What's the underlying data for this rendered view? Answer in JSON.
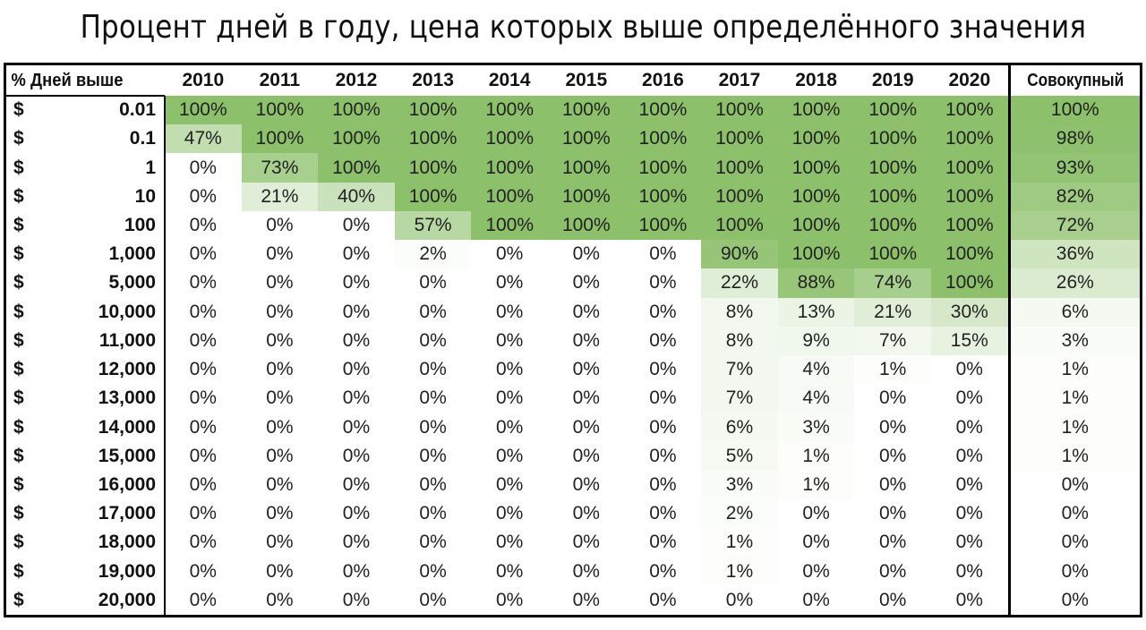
{
  "title": "Процент дней в году, цена которых выше определённого значения",
  "chart_data": {
    "type": "table",
    "corner_label": "% Дней выше",
    "currency_symbol": "$",
    "columns": [
      "2010",
      "2011",
      "2012",
      "2013",
      "2014",
      "2015",
      "2016",
      "2017",
      "2018",
      "2019",
      "2020"
    ],
    "total_label": "Совокупный",
    "rows": [
      {
        "price": "0.01",
        "values": [
          100,
          100,
          100,
          100,
          100,
          100,
          100,
          100,
          100,
          100,
          100
        ],
        "total": 100
      },
      {
        "price": "0.1",
        "values": [
          47,
          100,
          100,
          100,
          100,
          100,
          100,
          100,
          100,
          100,
          100
        ],
        "total": 98
      },
      {
        "price": "1",
        "values": [
          0,
          73,
          100,
          100,
          100,
          100,
          100,
          100,
          100,
          100,
          100
        ],
        "total": 93
      },
      {
        "price": "10",
        "values": [
          0,
          21,
          40,
          100,
          100,
          100,
          100,
          100,
          100,
          100,
          100
        ],
        "total": 82
      },
      {
        "price": "100",
        "values": [
          0,
          0,
          0,
          57,
          100,
          100,
          100,
          100,
          100,
          100,
          100
        ],
        "total": 72
      },
      {
        "price": "1,000",
        "values": [
          0,
          0,
          0,
          2,
          0,
          0,
          0,
          90,
          100,
          100,
          100
        ],
        "total": 36
      },
      {
        "price": "5,000",
        "values": [
          0,
          0,
          0,
          0,
          0,
          0,
          0,
          22,
          88,
          74,
          100
        ],
        "total": 26
      },
      {
        "price": "10,000",
        "values": [
          0,
          0,
          0,
          0,
          0,
          0,
          0,
          8,
          13,
          21,
          30
        ],
        "total": 6
      },
      {
        "price": "11,000",
        "values": [
          0,
          0,
          0,
          0,
          0,
          0,
          0,
          8,
          9,
          7,
          15
        ],
        "total": 3
      },
      {
        "price": "12,000",
        "values": [
          0,
          0,
          0,
          0,
          0,
          0,
          0,
          7,
          4,
          1,
          0
        ],
        "total": 1
      },
      {
        "price": "13,000",
        "values": [
          0,
          0,
          0,
          0,
          0,
          0,
          0,
          7,
          4,
          0,
          0
        ],
        "total": 1
      },
      {
        "price": "14,000",
        "values": [
          0,
          0,
          0,
          0,
          0,
          0,
          0,
          6,
          3,
          0,
          0
        ],
        "total": 1
      },
      {
        "price": "15,000",
        "values": [
          0,
          0,
          0,
          0,
          0,
          0,
          0,
          5,
          1,
          0,
          0
        ],
        "total": 1
      },
      {
        "price": "16,000",
        "values": [
          0,
          0,
          0,
          0,
          0,
          0,
          0,
          3,
          1,
          0,
          0
        ],
        "total": 0
      },
      {
        "price": "17,000",
        "values": [
          0,
          0,
          0,
          0,
          0,
          0,
          0,
          2,
          0,
          0,
          0
        ],
        "total": 0
      },
      {
        "price": "18,000",
        "values": [
          0,
          0,
          0,
          0,
          0,
          0,
          0,
          1,
          0,
          0,
          0
        ],
        "total": 0
      },
      {
        "price": "19,000",
        "values": [
          0,
          0,
          0,
          0,
          0,
          0,
          0,
          1,
          0,
          0,
          0
        ],
        "total": 0
      },
      {
        "price": "20,000",
        "values": [
          0,
          0,
          0,
          0,
          0,
          0,
          0,
          0,
          0,
          0,
          0
        ],
        "total": 0
      }
    ],
    "color_scale": {
      "low": "#ffffff",
      "high": "#8cc06a"
    }
  }
}
